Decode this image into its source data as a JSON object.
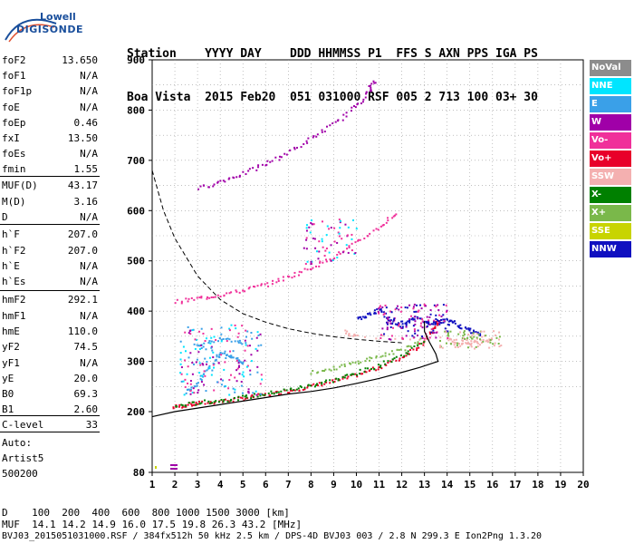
{
  "logo": {
    "line1": "Lowell",
    "line2": "DIGISONDE"
  },
  "header": {
    "line1": "Station    YYYY DAY    DDD HHMMSS P1  FFS S AXN PPS IGA PS",
    "line2": "Boa Vista  2015 Feb20  051 031000 RSF 005 2 713 100 03+ 30"
  },
  "params": [
    {
      "name": "foF2",
      "value": "13.650"
    },
    {
      "name": "foF1",
      "value": "N/A"
    },
    {
      "name": "foF1p",
      "value": "N/A"
    },
    {
      "name": "foE",
      "value": "N/A"
    },
    {
      "name": "foEp",
      "value": "0.46"
    },
    {
      "name": "fxI",
      "value": "13.50"
    },
    {
      "name": "foEs",
      "value": "N/A"
    },
    {
      "name": "fmin",
      "value": "1.55"
    },
    {
      "name": "MUF(D)",
      "value": "43.17"
    },
    {
      "name": "M(D)",
      "value": "3.16"
    },
    {
      "name": "D",
      "value": "N/A"
    },
    {
      "name": "h`F",
      "value": "207.0"
    },
    {
      "name": "h`F2",
      "value": "207.0"
    },
    {
      "name": "h`E",
      "value": "N/A"
    },
    {
      "name": "h`Es",
      "value": "N/A"
    },
    {
      "name": "hmF2",
      "value": "292.1"
    },
    {
      "name": "hmF1",
      "value": "N/A"
    },
    {
      "name": "hmE",
      "value": "110.0"
    },
    {
      "name": "yF2",
      "value": "74.5"
    },
    {
      "name": "yF1",
      "value": "N/A"
    },
    {
      "name": "yE",
      "value": "20.0"
    },
    {
      "name": "B0",
      "value": "69.3"
    },
    {
      "name": "B1",
      "value": "2.60"
    },
    {
      "name": "C-level",
      "value": "33"
    }
  ],
  "auto": {
    "line1": "Auto:",
    "line2": "Artist5",
    "line3": "500200"
  },
  "legend": [
    {
      "label": "NoVal",
      "color": "#8c8c8c"
    },
    {
      "label": "NNE",
      "color": "#00e5ff"
    },
    {
      "label": "E",
      "color": "#3aa0e8"
    },
    {
      "label": "W",
      "color": "#a000a8"
    },
    {
      "label": "Vo-",
      "color": "#f0309a"
    },
    {
      "label": "Vo+",
      "color": "#e8002a"
    },
    {
      "label": "SSW",
      "color": "#f4b0b0"
    },
    {
      "label": "X-",
      "color": "#008000"
    },
    {
      "label": "X+",
      "color": "#7ab84a"
    },
    {
      "label": "SSE",
      "color": "#c8d400"
    },
    {
      "label": "NNW",
      "color": "#1010c0"
    }
  ],
  "bottom": {
    "d_row": "D    100  200  400  600  800 1000 1500 3000 [km]",
    "muf_row": "MUF  14.1 14.2 14.9 16.0 17.5 19.8 26.3 43.2 [MHz]",
    "footer": "BVJ03_2015051031000.RSF / 384fx512h 50 kHz 2.5 km / DPS-4D BVJ03 003 / 2.8 N 299.3 E Ion2Png 1.3.20"
  },
  "chart_data": {
    "type": "scatter",
    "xlim": [
      1,
      20
    ],
    "ylim": [
      80,
      900
    ],
    "x_ticks": [
      "1",
      "2",
      "3",
      "4",
      "5",
      "6",
      "7",
      "8",
      "9",
      "10",
      "11",
      "12",
      "13",
      "14",
      "15",
      "16",
      "17",
      "18",
      "19",
      "20"
    ],
    "y_ticks": [
      "80",
      "200",
      "300",
      "400",
      "500",
      "600",
      "700",
      "800",
      "900"
    ],
    "grid": true,
    "series": [
      {
        "color": "#e8002a",
        "points": [
          [
            1.9,
            210
          ],
          [
            2.5,
            215
          ],
          [
            3,
            218
          ],
          [
            4,
            222
          ],
          [
            5,
            228
          ],
          [
            6,
            235
          ],
          [
            7,
            243
          ],
          [
            8,
            252
          ],
          [
            9,
            262
          ],
          [
            10,
            275
          ],
          [
            11,
            290
          ],
          [
            12,
            310
          ],
          [
            12.8,
            335
          ],
          [
            13.4,
            365
          ],
          [
            13.6,
            385
          ]
        ]
      },
      {
        "color": "#008000",
        "points": [
          [
            2,
            212
          ],
          [
            3,
            219
          ],
          [
            4,
            224
          ],
          [
            5,
            230
          ],
          [
            6,
            237
          ],
          [
            7,
            245
          ],
          [
            8,
            254
          ],
          [
            9,
            265
          ],
          [
            10,
            278
          ],
          [
            11,
            294
          ],
          [
            12,
            314
          ],
          [
            13,
            345
          ]
        ]
      },
      {
        "color": "#f0309a",
        "points": [
          [
            2,
            420
          ],
          [
            3,
            427
          ],
          [
            4,
            434
          ],
          [
            5,
            443
          ],
          [
            6,
            455
          ],
          [
            7,
            470
          ],
          [
            8,
            488
          ],
          [
            9,
            510
          ],
          [
            10,
            538
          ],
          [
            11,
            570
          ],
          [
            11.8,
            600
          ]
        ]
      },
      {
        "color": "#a000a8",
        "points": [
          [
            3,
            645
          ],
          [
            4,
            660
          ],
          [
            5,
            675
          ],
          [
            6,
            695
          ],
          [
            7,
            718
          ],
          [
            8,
            745
          ],
          [
            9,
            775
          ],
          [
            10,
            810
          ],
          [
            10.5,
            840
          ],
          [
            10.8,
            860
          ]
        ]
      },
      {
        "color": "#1010c0",
        "points": [
          [
            10,
            385
          ],
          [
            10.5,
            395
          ],
          [
            11,
            405
          ],
          [
            11.5,
            380
          ],
          [
            12,
            372
          ],
          [
            12.5,
            390
          ],
          [
            13,
            380
          ],
          [
            13.5,
            378
          ],
          [
            14,
            385
          ],
          [
            14.5,
            372
          ],
          [
            15,
            362
          ],
          [
            15.5,
            355
          ]
        ]
      },
      {
        "color": "#f4b0b0",
        "points": [
          [
            9.5,
            360
          ],
          [
            10,
            352
          ],
          [
            14,
            345
          ],
          [
            14.5,
            340
          ],
          [
            15,
            338
          ],
          [
            15.5,
            342
          ],
          [
            16,
            348
          ]
        ]
      },
      {
        "color": "#3aa0e8",
        "points": [
          [
            2.5,
            240
          ],
          [
            3,
            260
          ],
          [
            3.5,
            290
          ],
          [
            4,
            320
          ],
          [
            4.5,
            310
          ],
          [
            5,
            300
          ],
          [
            3,
            330
          ],
          [
            4,
            350
          ],
          [
            5,
            340
          ]
        ]
      },
      {
        "color": "#7ab84a",
        "points": [
          [
            8,
            280
          ],
          [
            9,
            288
          ],
          [
            10,
            300
          ],
          [
            11,
            312
          ],
          [
            12,
            325
          ],
          [
            13,
            350
          ]
        ]
      }
    ],
    "profile_curve": [
      [
        1,
        190
      ],
      [
        2,
        200
      ],
      [
        3,
        207
      ],
      [
        4,
        214
      ],
      [
        5,
        221
      ],
      [
        6,
        228
      ],
      [
        7,
        235
      ],
      [
        8,
        240
      ],
      [
        9,
        247
      ],
      [
        10,
        256
      ],
      [
        11,
        266
      ],
      [
        12,
        278
      ],
      [
        12.8,
        288
      ],
      [
        13.4,
        297
      ],
      [
        13.6,
        300
      ],
      [
        13.5,
        315
      ],
      [
        13.2,
        340
      ],
      [
        13.0,
        360
      ],
      [
        13.0,
        380
      ]
    ],
    "muf_curve": [
      [
        1,
        680
      ],
      [
        1.5,
        600
      ],
      [
        2,
        545
      ],
      [
        3,
        470
      ],
      [
        4,
        423
      ],
      [
        5,
        395
      ],
      [
        6,
        378
      ],
      [
        7,
        365
      ],
      [
        8,
        356
      ],
      [
        9,
        349
      ],
      [
        10,
        344
      ],
      [
        11,
        340
      ],
      [
        12,
        337
      ]
    ]
  }
}
